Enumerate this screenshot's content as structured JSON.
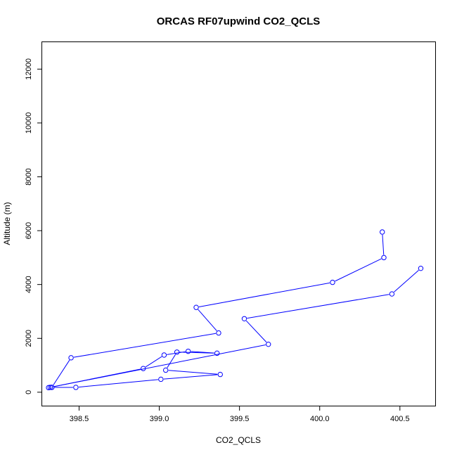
{
  "chart_data": {
    "type": "line",
    "title": "ORCAS RF07upwind CO2_QCLS",
    "xlabel": "CO2_QCLS",
    "ylabel": "Altitude (m)",
    "xlim": [
      398.27,
      400.72
    ],
    "ylim": [
      -500,
      13000
    ],
    "x_ticks": [
      398.5,
      399.0,
      399.5,
      400.0,
      400.5
    ],
    "x_tick_labels": [
      "398.5",
      "399.0",
      "399.5",
      "400.0",
      "400.5"
    ],
    "y_ticks": [
      0,
      2000,
      4000,
      6000,
      8000,
      10000,
      12000
    ],
    "y_tick_labels": [
      "0",
      "2000",
      "4000",
      "6000",
      "8000",
      "10000",
      "12000"
    ],
    "grid": false,
    "series": [
      {
        "color": "#0000ff",
        "marker": "open-circle",
        "x": [
          400.39,
          400.4,
          400.08,
          399.23,
          399.37,
          398.45,
          398.33,
          398.31,
          398.33,
          398.48,
          399.01,
          399.38,
          399.04,
          399.11,
          399.36,
          399.18,
          399.03,
          398.9,
          398.32,
          399.68,
          399.53,
          400.45,
          400.63
        ],
        "y": [
          5950,
          5000,
          4080,
          3150,
          2200,
          1280,
          180,
          170,
          180,
          180,
          480,
          660,
          820,
          1490,
          1450,
          1520,
          1380,
          880,
          180,
          1780,
          2730,
          3650,
          4600
        ]
      }
    ]
  }
}
